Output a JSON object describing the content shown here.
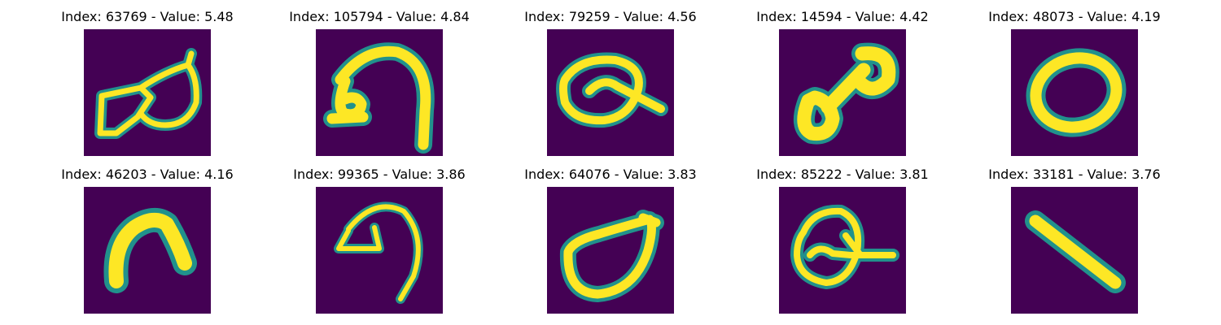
{
  "colors": {
    "background": "#440154",
    "mid": "#21918c",
    "stroke": "#fde725"
  },
  "panels": [
    {
      "title": "Index: 63769 - Value: 5.48",
      "icon": "handwritten-glyph-double-loop"
    },
    {
      "title": "Index: 105794 - Value: 4.84",
      "icon": "handwritten-glyph-hook"
    },
    {
      "title": "Index: 79259 - Value: 4.56",
      "icon": "handwritten-glyph-loop-tail"
    },
    {
      "title": "Index: 14594 - Value: 4.42",
      "icon": "handwritten-glyph-blob"
    },
    {
      "title": "Index: 48073 - Value: 4.19",
      "icon": "handwritten-glyph-zero"
    },
    {
      "title": "Index: 46203 - Value: 4.16",
      "icon": "handwritten-glyph-arch"
    },
    {
      "title": "Index: 99365 - Value: 3.86",
      "icon": "handwritten-glyph-hook-thin"
    },
    {
      "title": "Index: 64076 - Value: 3.83",
      "icon": "handwritten-glyph-leaf"
    },
    {
      "title": "Index: 85222 - Value: 3.81",
      "icon": "handwritten-glyph-q"
    },
    {
      "title": "Index: 33181 - Value: 3.76",
      "icon": "handwritten-glyph-slash"
    }
  ]
}
